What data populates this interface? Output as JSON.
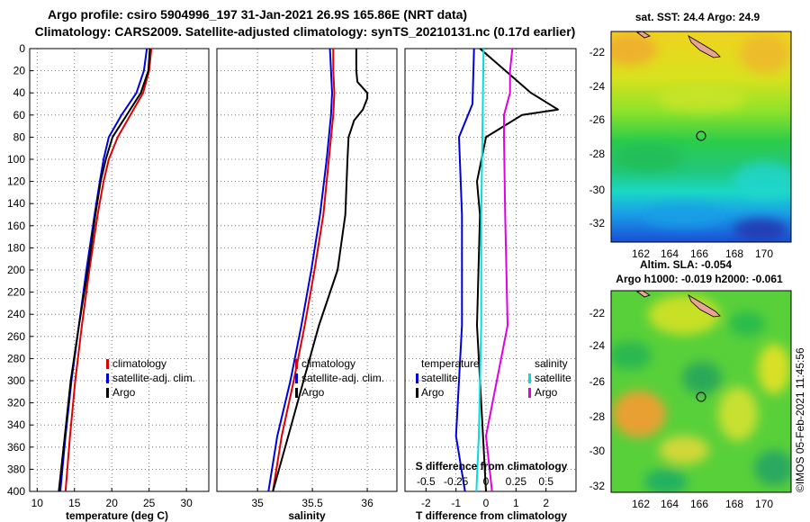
{
  "figure": {
    "title_line1": "Argo profile: csiro 5904996_197 31-Jan-2021 26.9S 165.86E (NRT data)",
    "title_line2": "Climatology: CARS2009. Satellite-adjusted climatology: synTS_20210131.nc (0.17d earlier)",
    "credit": "©IMOS 05-Feb-2021 11:45:56",
    "colors": {
      "climatology": "#e00000",
      "satellite": "#0000dd",
      "argo": "#000000",
      "sal_satellite": "#00dede",
      "sal_argo": "#e000e0"
    }
  },
  "chart_data": [
    {
      "type": "line",
      "panel": "temperature",
      "xlabel": "temperature (deg C)",
      "ylabel": "",
      "xlim": [
        9,
        33
      ],
      "ylim": [
        400,
        0
      ],
      "xticks": [
        "10",
        "15",
        "20",
        "25",
        "30"
      ],
      "yticks": [
        "0",
        "20",
        "40",
        "60",
        "80",
        "100",
        "120",
        "140",
        "160",
        "180",
        "200",
        "220",
        "240",
        "260",
        "280",
        "300",
        "320",
        "340",
        "360",
        "380",
        "400"
      ],
      "grid": true,
      "legend": [
        "climatology",
        "satellite-adj. clim.",
        "Argo"
      ],
      "series": [
        {
          "name": "climatology",
          "depth": [
            0,
            20,
            40,
            60,
            80,
            100,
            120,
            150,
            200,
            250,
            300,
            350,
            400
          ],
          "values": [
            25.3,
            25.0,
            24.2,
            22.5,
            20.8,
            19.6,
            18.9,
            18.1,
            17.0,
            16.0,
            15.1,
            14.4,
            13.8
          ]
        },
        {
          "name": "satellite-adj. clim.",
          "depth": [
            0,
            20,
            40,
            60,
            80,
            100,
            120,
            150,
            200,
            250,
            300,
            350,
            400
          ],
          "values": [
            24.7,
            24.3,
            23.3,
            21.3,
            19.6,
            18.9,
            18.4,
            17.7,
            16.6,
            15.6,
            14.6,
            13.8,
            13.1
          ]
        },
        {
          "name": "Argo",
          "depth": [
            0,
            20,
            40,
            60,
            80,
            100,
            120,
            150,
            200,
            250,
            300,
            350,
            400
          ],
          "values": [
            25.1,
            24.9,
            23.9,
            22.0,
            20.1,
            19.2,
            18.5,
            17.8,
            16.8,
            15.6,
            14.5,
            13.7,
            12.9
          ]
        }
      ]
    },
    {
      "type": "line",
      "panel": "salinity",
      "xlabel": "salinity",
      "ylabel": "",
      "xlim": [
        34.63,
        36.27
      ],
      "ylim": [
        400,
        0
      ],
      "xticks": [
        "35",
        "35.5",
        "36"
      ],
      "grid": true,
      "legend": [
        "climatology",
        "satellite-adj. clim.",
        "Argo"
      ],
      "series": [
        {
          "name": "climatology",
          "depth": [
            0,
            20,
            40,
            60,
            80,
            100,
            150,
            200,
            250,
            300,
            350,
            400
          ],
          "values": [
            35.69,
            35.69,
            35.7,
            35.69,
            35.67,
            35.65,
            35.6,
            35.52,
            35.43,
            35.33,
            35.22,
            35.14
          ]
        },
        {
          "name": "satellite-adj. clim.",
          "depth": [
            0,
            20,
            40,
            60,
            80,
            100,
            150,
            200,
            250,
            300,
            350,
            400
          ],
          "values": [
            35.66,
            35.67,
            35.68,
            35.67,
            35.65,
            35.63,
            35.57,
            35.49,
            35.4,
            35.3,
            35.18,
            35.1
          ]
        },
        {
          "name": "Argo",
          "depth": [
            0,
            20,
            30,
            40,
            45,
            55,
            65,
            80,
            100,
            150,
            200,
            250,
            300,
            350,
            400
          ],
          "values": [
            35.9,
            35.9,
            35.91,
            36.0,
            36.0,
            35.96,
            35.88,
            35.83,
            35.82,
            35.8,
            35.73,
            35.56,
            35.42,
            35.28,
            35.14
          ]
        }
      ]
    },
    {
      "type": "line",
      "panel": "difference",
      "xlabel": "T difference from climatology",
      "xlabel_top": "S difference from climatology",
      "xlim": [
        -2.7,
        3.0
      ],
      "ylim": [
        400,
        0
      ],
      "xticks": [
        "-2",
        "-1",
        "0",
        "1",
        "2"
      ],
      "xticks_salinity": [
        "-0.5",
        "-0.25",
        "0",
        "0.25",
        "0.5"
      ],
      "grid": true,
      "legend_temperature": {
        "header": "temperature",
        "items": [
          "satellite",
          "Argo"
        ]
      },
      "legend_salinity": {
        "header": "salinity",
        "items": [
          "satellite",
          "Argo"
        ]
      },
      "series": [
        {
          "name": "temperature satellite",
          "depth": [
            0,
            50,
            80,
            150,
            250,
            350,
            400
          ],
          "values": [
            -0.4,
            -0.45,
            -0.9,
            -0.8,
            -0.8,
            -1.0,
            -0.7
          ]
        },
        {
          "name": "temperature Argo",
          "depth": [
            0,
            40,
            55,
            60,
            80,
            120,
            150,
            250,
            350,
            400
          ],
          "values": [
            -0.2,
            1.5,
            2.4,
            1.2,
            0.0,
            -0.3,
            -0.2,
            -0.3,
            -0.1,
            0.0
          ]
        },
        {
          "name": "salinity satellite",
          "depth": [
            0,
            80,
            150,
            250,
            350,
            400
          ],
          "values": [
            -0.02,
            -0.03,
            -0.04,
            -0.04,
            -0.06,
            -0.08
          ]
        },
        {
          "name": "salinity Argo",
          "depth": [
            0,
            20,
            40,
            60,
            80,
            150,
            250,
            350,
            400
          ],
          "values": [
            0.22,
            0.2,
            0.2,
            0.15,
            0.15,
            0.16,
            0.18,
            0.0,
            0.05
          ]
        }
      ]
    },
    {
      "type": "heatmap",
      "panel": "sst-map",
      "title": "sat. SST: 24.4 Argo: 24.9",
      "xticks": [
        "162",
        "164",
        "166",
        "168",
        "170"
      ],
      "yticks": [
        "-22",
        "-24",
        "-26",
        "-28",
        "-30",
        "-32"
      ],
      "profile_location": [
        165.86,
        -26.9
      ]
    },
    {
      "type": "heatmap",
      "panel": "sla-map",
      "title_line1": "Altim. SLA: -0.054",
      "title_line2": "Argo h1000: -0.019 h2000: -0.061",
      "xticks": [
        "162",
        "164",
        "166",
        "168",
        "170"
      ],
      "yticks": [
        "-22",
        "-24",
        "-26",
        "-28",
        "-30",
        "-32"
      ],
      "profile_location": [
        165.86,
        -26.9
      ]
    }
  ]
}
